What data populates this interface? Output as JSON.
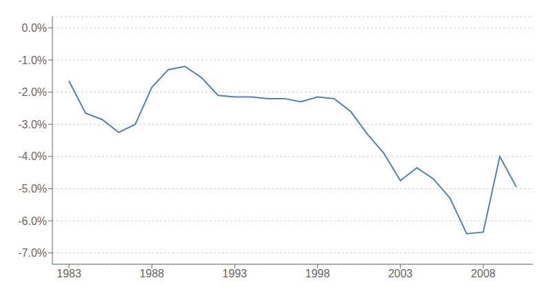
{
  "chart_data": {
    "type": "line",
    "x": [
      1983,
      1984,
      1985,
      1986,
      1987,
      1988,
      1989,
      1990,
      1991,
      1992,
      1993,
      1994,
      1995,
      1996,
      1997,
      1998,
      1999,
      2000,
      2001,
      2002,
      2003,
      2004,
      2005,
      2006,
      2007,
      2008,
      2009,
      2010
    ],
    "values": [
      -1.65,
      -2.65,
      -2.85,
      -3.25,
      -3.0,
      -1.85,
      -1.3,
      -1.2,
      -1.55,
      -2.1,
      -2.15,
      -2.15,
      -2.2,
      -2.2,
      -2.3,
      -2.15,
      -2.2,
      -2.6,
      -3.3,
      -3.9,
      -4.75,
      -4.35,
      -4.7,
      -5.3,
      -6.4,
      -6.35,
      -4.0,
      -4.95
    ],
    "color": "#4f81bd",
    "xlim": [
      1982,
      2011
    ],
    "xticks": [
      1983,
      1988,
      1993,
      1998,
      2003,
      2008
    ],
    "ylim": [
      -7.35,
      0.35
    ],
    "yticks": [
      {
        "value": 0,
        "label": "0.0%"
      },
      {
        "value": -1,
        "label": "-1.0%"
      },
      {
        "value": -2,
        "label": "-2.0%"
      },
      {
        "value": -3,
        "label": "-3.0%"
      },
      {
        "value": -4,
        "label": "-4.0%"
      },
      {
        "value": -5,
        "label": "-5.0%"
      },
      {
        "value": -6,
        "label": "-6.0%"
      },
      {
        "value": -7,
        "label": "-7.0%"
      }
    ],
    "grid": true
  }
}
